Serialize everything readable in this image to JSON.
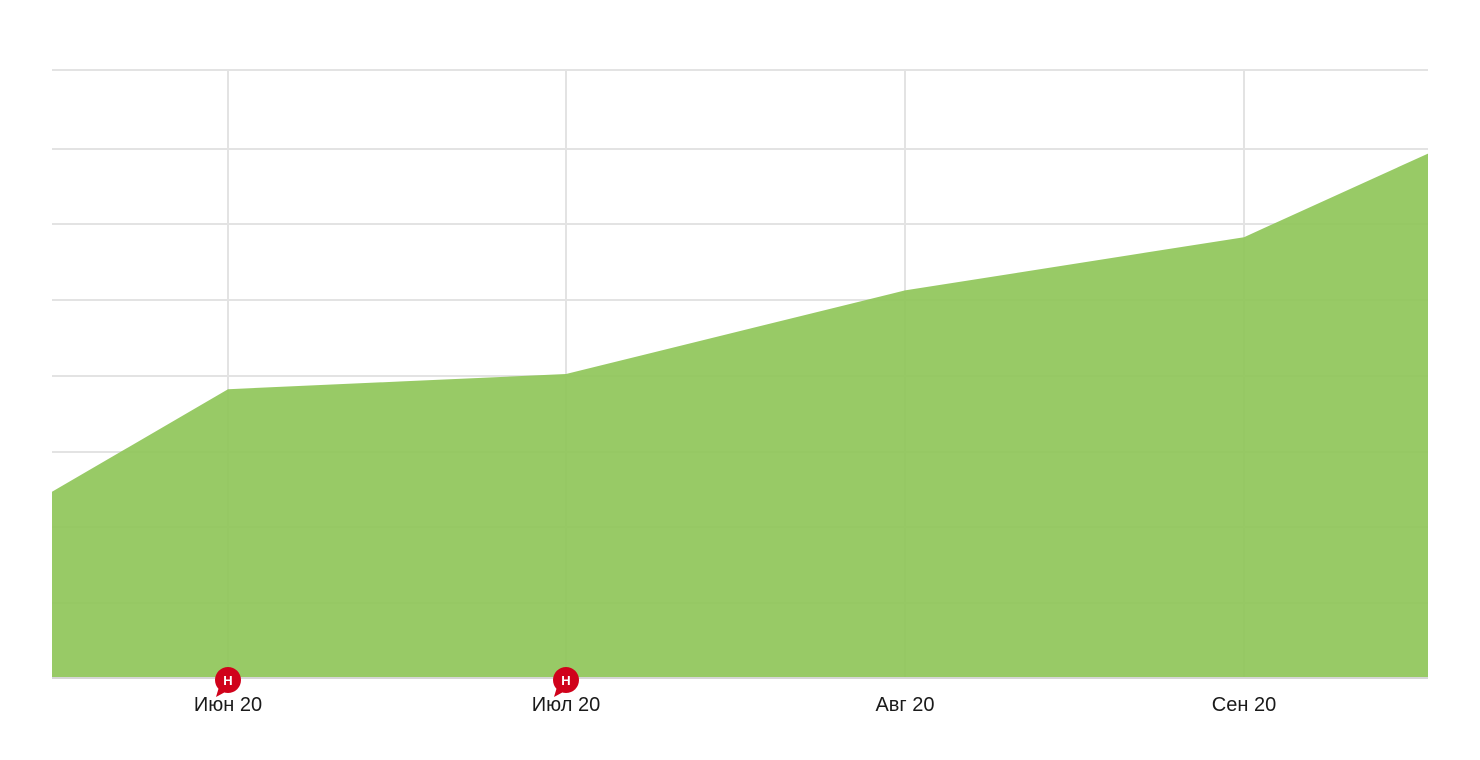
{
  "chart_data": {
    "type": "area",
    "x_tick_labels": [
      "Июн 20",
      "Июл 20",
      "Авг 20",
      "Сен 20"
    ],
    "y_tick_labels": [],
    "series": [
      {
        "values": [
          24.5,
          38,
          40,
          51,
          58,
          69
        ]
      }
    ],
    "ylim": [
      0,
      80
    ],
    "grid": true,
    "annotations": [
      {
        "label": "Н",
        "at": "Июн 20"
      },
      {
        "label": "Н",
        "at": "Июл 20"
      }
    ],
    "colors": {
      "area": "#8dc455",
      "grid": "#e3e3e3",
      "marker": "#d0021b",
      "axis": "#d6d6d6"
    }
  }
}
